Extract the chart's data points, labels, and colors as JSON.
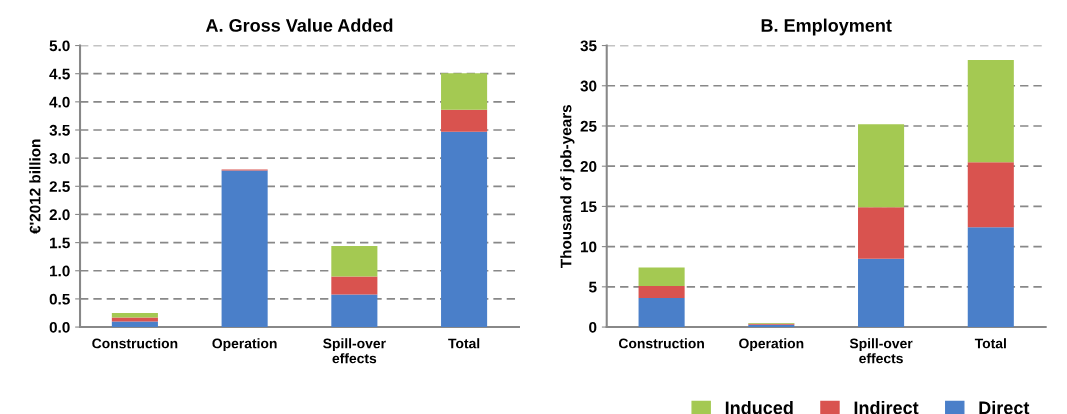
{
  "chart_data": [
    {
      "type": "bar",
      "title": "A. Gross Value Added",
      "ylabel": "€'2012 billion",
      "categories": [
        "Construction",
        "Operation",
        "Spill-over\neffects",
        "Total"
      ],
      "stacked": true,
      "ylim": [
        0,
        5
      ],
      "yticks": [
        {
          "value": 0,
          "label": "0.0"
        },
        {
          "value": 0.5,
          "label": "0.5"
        },
        {
          "value": 1,
          "label": "1.0"
        },
        {
          "value": 1.5,
          "label": "1.5"
        },
        {
          "value": 2,
          "label": "2.0"
        },
        {
          "value": 2.5,
          "label": "2.5"
        },
        {
          "value": 3,
          "label": "3.0"
        },
        {
          "value": 3.5,
          "label": "3.5"
        },
        {
          "value": 4,
          "label": "4.0"
        },
        {
          "value": 4.5,
          "label": "4.5"
        },
        {
          "value": 5,
          "label": "5.0"
        }
      ],
      "grid": "y",
      "series": [
        {
          "color": "#4a7fc9",
          "values": [
            0.1,
            2.78,
            0.58,
            3.47
          ]
        },
        {
          "color": "#d9534f",
          "values": [
            0.07,
            0.02,
            0.32,
            0.39
          ]
        },
        {
          "color": "#a4c952",
          "values": [
            0.08,
            null,
            0.54,
            0.65
          ]
        }
      ]
    },
    {
      "type": "bar",
      "title": "B. Employment",
      "ylabel": "Thousand of job-years",
      "categories": [
        "Construction",
        "Operation",
        "Spill-over\neffects",
        "Total"
      ],
      "stacked": true,
      "ylim": [
        0,
        35
      ],
      "yticks": [
        0,
        5,
        10,
        15,
        20,
        25,
        30,
        35
      ],
      "grid": "y",
      "legend": "bottom right",
      "series": [
        {
          "name": "Direct",
          "color": "#4a7fc9",
          "values": [
            3.6,
            0.3,
            8.5,
            12.4
          ]
        },
        {
          "name": "Indirect",
          "color": "#d9534f",
          "values": [
            1.5,
            0.1,
            6.4,
            8.1
          ]
        },
        {
          "name": "Induced",
          "color": "#a4c952",
          "values": [
            2.3,
            0.1,
            10.3,
            12.7
          ]
        }
      ]
    }
  ]
}
